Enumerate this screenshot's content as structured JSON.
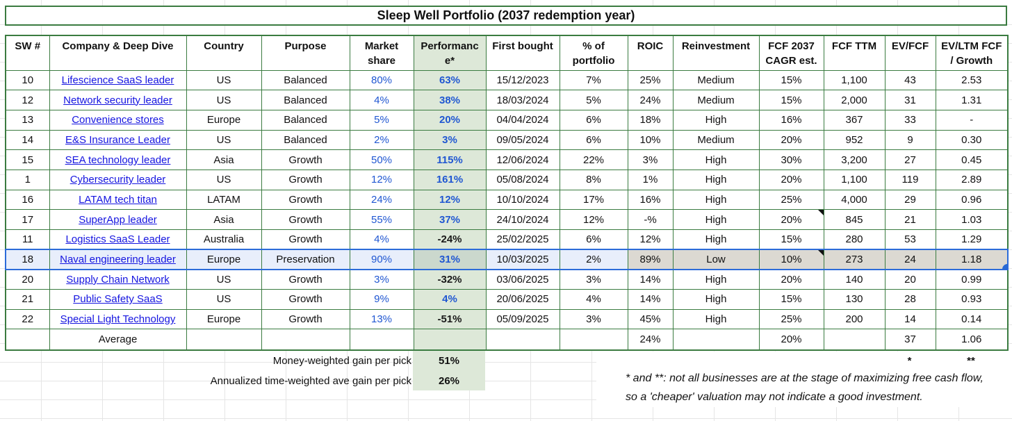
{
  "title": "Sleep Well Portfolio (2037 redemption year)",
  "colors": {
    "border_green": "#3a7b40",
    "fill_green": "#dde8d8",
    "fill_yellow": "#fdf2cd",
    "link_blue": "#1515e0",
    "value_blue": "#2057d2",
    "selection_blue": "#2b6bd9"
  },
  "table": {
    "columns": [
      {
        "key": "sw",
        "lines": [
          "SW #"
        ]
      },
      {
        "key": "company",
        "lines": [
          "Company & Deep Dive"
        ]
      },
      {
        "key": "country",
        "lines": [
          "Country"
        ]
      },
      {
        "key": "purpose",
        "lines": [
          "Purpose"
        ]
      },
      {
        "key": "market_share",
        "lines": [
          "Market",
          "share"
        ]
      },
      {
        "key": "performance",
        "lines": [
          "Performanc",
          "e*"
        ]
      },
      {
        "key": "first_bought",
        "lines": [
          "First bought"
        ]
      },
      {
        "key": "pct_portfolio",
        "lines": [
          "% of",
          "portfolio"
        ]
      },
      {
        "key": "roic",
        "lines": [
          "ROIC"
        ]
      },
      {
        "key": "reinvestment",
        "lines": [
          "Reinvestment"
        ]
      },
      {
        "key": "fcf_cagr",
        "lines": [
          "FCF 2037",
          "CAGR est."
        ]
      },
      {
        "key": "fcf_ttm",
        "lines": [
          "FCF TTM"
        ]
      },
      {
        "key": "ev_fcf",
        "lines": [
          "EV/FCF"
        ]
      },
      {
        "key": "ev_ltm_growth",
        "lines": [
          "EV/LTM FCF",
          "/ Growth"
        ]
      }
    ],
    "rows": [
      {
        "sw": "10",
        "company": "Lifescience SaaS leader",
        "country": "US",
        "purpose": "Balanced",
        "market_share": "80%",
        "performance": "63%",
        "first_bought": "15/12/2023",
        "pct_portfolio": "7%",
        "roic": "25%",
        "reinvestment": "Medium",
        "fcf_cagr": "15%",
        "fcf_ttm": "1,100",
        "ev_fcf": "43",
        "ev_ltm_growth": "2.53",
        "selected": false,
        "comment": false
      },
      {
        "sw": "12",
        "company": "Network security leader",
        "country": "US",
        "purpose": "Balanced",
        "market_share": "4%",
        "performance": "38%",
        "first_bought": "18/03/2024",
        "pct_portfolio": "5%",
        "roic": "24%",
        "reinvestment": "Medium",
        "fcf_cagr": "15%",
        "fcf_ttm": "2,000",
        "ev_fcf": "31",
        "ev_ltm_growth": "1.31",
        "selected": false,
        "comment": false
      },
      {
        "sw": "13",
        "company": "Convenience stores",
        "country": "Europe",
        "purpose": "Balanced",
        "market_share": "5%",
        "performance": "20%",
        "first_bought": "04/04/2024",
        "pct_portfolio": "6%",
        "roic": "18%",
        "reinvestment": "High",
        "fcf_cagr": "16%",
        "fcf_ttm": "367",
        "ev_fcf": "33",
        "ev_ltm_growth": "-",
        "selected": false,
        "comment": false
      },
      {
        "sw": "14",
        "company": "E&S Insurance Leader",
        "country": "US",
        "purpose": "Balanced",
        "market_share": "2%",
        "performance": "3%",
        "first_bought": "09/05/2024",
        "pct_portfolio": "6%",
        "roic": "10%",
        "reinvestment": "Medium",
        "fcf_cagr": "20%",
        "fcf_ttm": "952",
        "ev_fcf": "9",
        "ev_ltm_growth": "0.30",
        "selected": false,
        "comment": false
      },
      {
        "sw": "15",
        "company": "SEA technology leader",
        "country": "Asia",
        "purpose": "Growth",
        "market_share": "50%",
        "performance": "115%",
        "first_bought": "12/06/2024",
        "pct_portfolio": "22%",
        "roic": "3%",
        "reinvestment": "High",
        "fcf_cagr": "30%",
        "fcf_ttm": "3,200",
        "ev_fcf": "27",
        "ev_ltm_growth": "0.45",
        "selected": false,
        "comment": false
      },
      {
        "sw": "1",
        "company": "Cybersecurity leader",
        "country": "US",
        "purpose": "Growth",
        "market_share": "12%",
        "performance": "161%",
        "first_bought": "05/08/2024",
        "pct_portfolio": "8%",
        "roic": "1%",
        "reinvestment": "High",
        "fcf_cagr": "20%",
        "fcf_ttm": "1,100",
        "ev_fcf": "119",
        "ev_ltm_growth": "2.89",
        "selected": false,
        "comment": false
      },
      {
        "sw": "16",
        "company": "LATAM tech titan",
        "country": "LATAM",
        "purpose": "Growth",
        "market_share": "24%",
        "performance": "12%",
        "first_bought": "10/10/2024",
        "pct_portfolio": "17%",
        "roic": "16%",
        "reinvestment": "High",
        "fcf_cagr": "25%",
        "fcf_ttm": "4,000",
        "ev_fcf": "29",
        "ev_ltm_growth": "0.96",
        "selected": false,
        "comment": false
      },
      {
        "sw": "17",
        "company": "SuperApp leader",
        "country": "Asia",
        "purpose": "Growth",
        "market_share": "55%",
        "performance": "37%",
        "first_bought": "24/10/2024",
        "pct_portfolio": "12%",
        "roic": "-%",
        "reinvestment": "High",
        "fcf_cagr": "20%",
        "fcf_ttm": "845",
        "ev_fcf": "21",
        "ev_ltm_growth": "1.03",
        "selected": false,
        "comment": true
      },
      {
        "sw": "11",
        "company": "Logistics SaaS Leader",
        "country": "Australia",
        "purpose": "Growth",
        "market_share": "4%",
        "performance": "-24%",
        "first_bought": "25/02/2025",
        "pct_portfolio": "6%",
        "roic": "12%",
        "reinvestment": "High",
        "fcf_cagr": "15%",
        "fcf_ttm": "280",
        "ev_fcf": "53",
        "ev_ltm_growth": "1.29",
        "selected": false,
        "comment": false
      },
      {
        "sw": "18",
        "company": "Naval engineering leader",
        "country": "Europe",
        "purpose": "Preservation",
        "market_share": "90%",
        "performance": "31%",
        "first_bought": "10/03/2025",
        "pct_portfolio": "2%",
        "roic": "89%",
        "reinvestment": "Low",
        "fcf_cagr": "10%",
        "fcf_ttm": "273",
        "ev_fcf": "24",
        "ev_ltm_growth": "1.18",
        "selected": true,
        "comment": true
      },
      {
        "sw": "20",
        "company": "Supply Chain Network",
        "country": "US",
        "purpose": "Growth",
        "market_share": "3%",
        "performance": "-32%",
        "first_bought": "03/06/2025",
        "pct_portfolio": "3%",
        "roic": "14%",
        "reinvestment": "High",
        "fcf_cagr": "20%",
        "fcf_ttm": "140",
        "ev_fcf": "20",
        "ev_ltm_growth": "0.99",
        "selected": false,
        "comment": false
      },
      {
        "sw": "21",
        "company": "Public Safety SaaS",
        "country": "US",
        "purpose": "Growth",
        "market_share": "9%",
        "performance": "4%",
        "first_bought": "20/06/2025",
        "pct_portfolio": "4%",
        "roic": "14%",
        "reinvestment": "High",
        "fcf_cagr": "15%",
        "fcf_ttm": "130",
        "ev_fcf": "28",
        "ev_ltm_growth": "0.93",
        "selected": false,
        "comment": false
      },
      {
        "sw": "22",
        "company": "Special Light Technology",
        "country": "Europe",
        "purpose": "Growth",
        "market_share": "13%",
        "performance": "-51%",
        "first_bought": "05/09/2025",
        "pct_portfolio": "3%",
        "roic": "45%",
        "reinvestment": "High",
        "fcf_cagr": "25%",
        "fcf_ttm": "200",
        "ev_fcf": "14",
        "ev_ltm_growth": "0.14",
        "selected": false,
        "comment": false
      }
    ],
    "average_row": {
      "label": "Average",
      "roic": "24%",
      "fcf_cagr": "20%",
      "ev_fcf": "37",
      "ev_ltm_growth": "1.06"
    }
  },
  "summary": {
    "money_weighted_label": "Money-weighted gain per pick",
    "money_weighted_value": "51%",
    "annualized_label": "Annualized time-weighted ave gain per pick",
    "annualized_value": "26%",
    "asterisk_single": "*",
    "asterisk_double": "**"
  },
  "footnote": {
    "line1": "* and **: not all businesses are at the stage of maximizing free cash flow,",
    "line2": "so a 'cheaper' valuation may not indicate a good investment."
  }
}
